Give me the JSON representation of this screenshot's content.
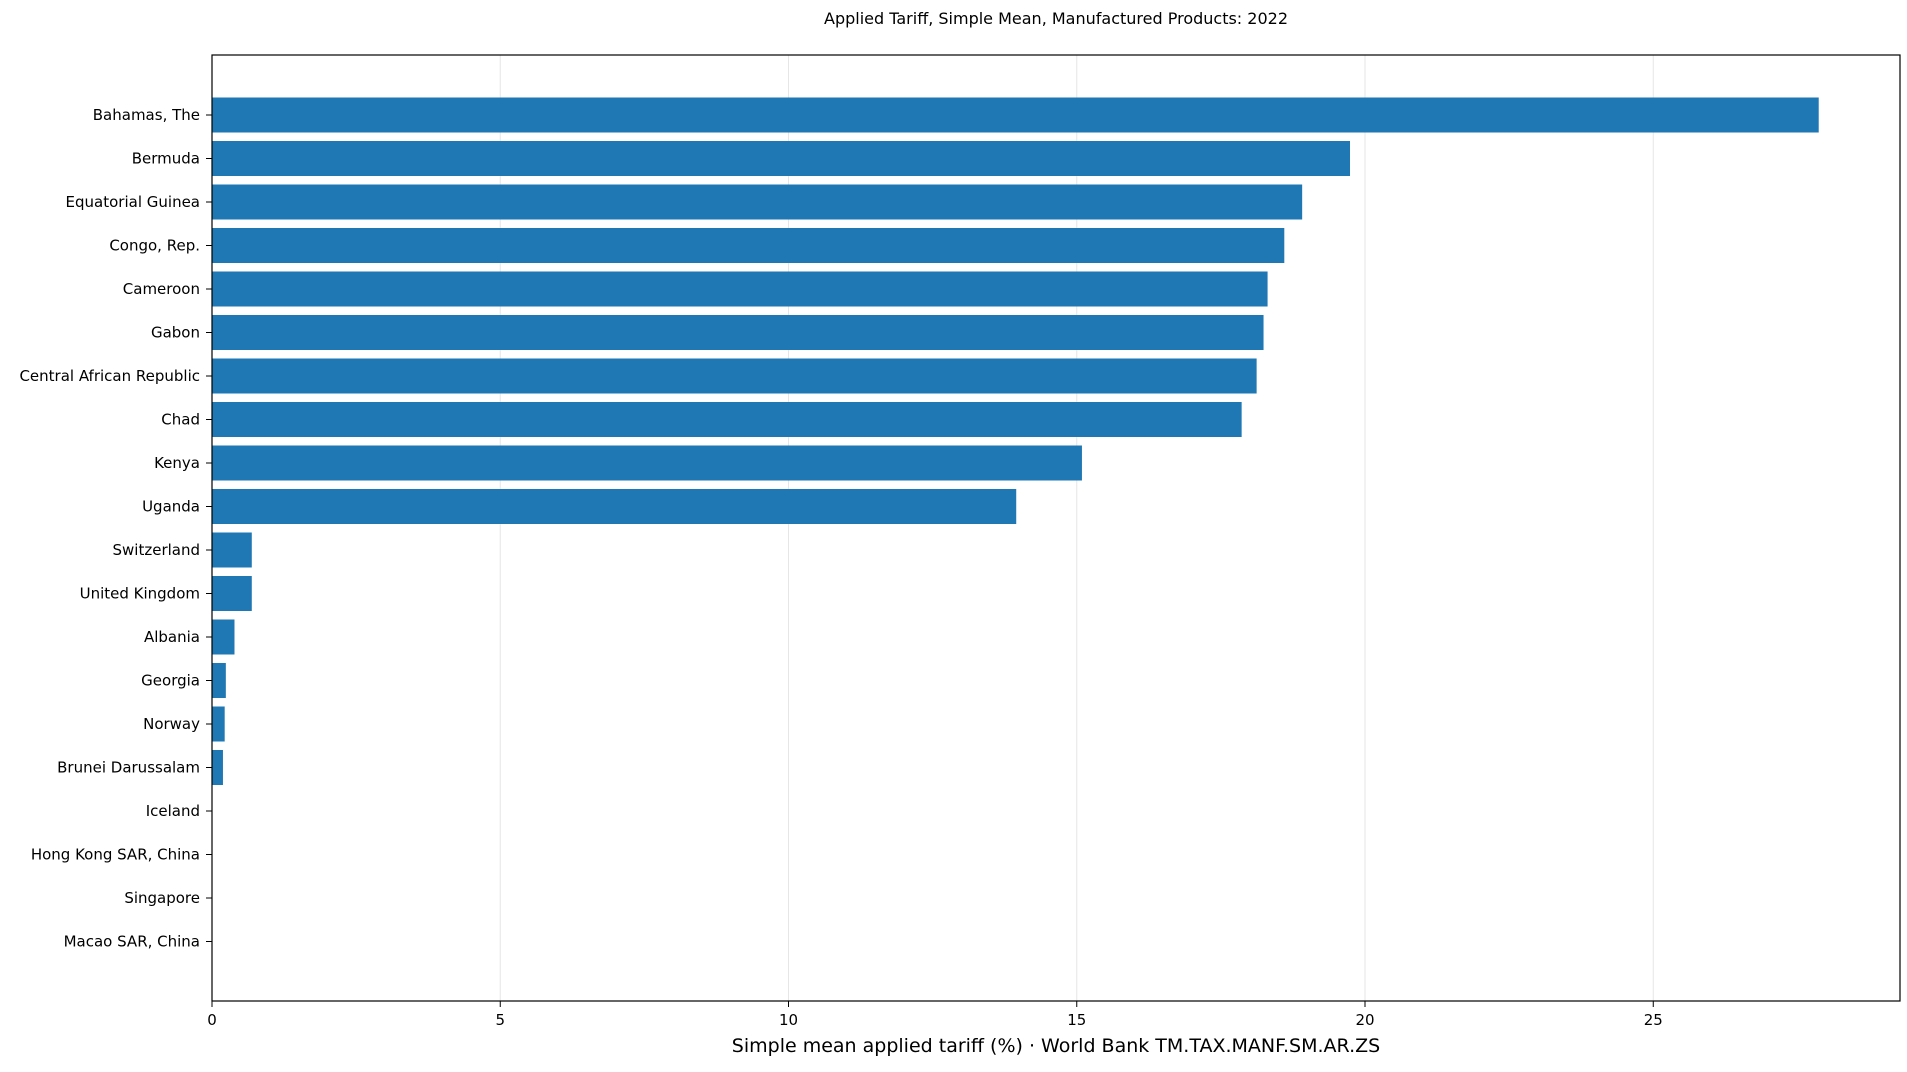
{
  "chart_data": {
    "type": "bar",
    "orientation": "horizontal",
    "title": "Applied Tariff, Simple Mean, Manufactured Products: 2022",
    "xlabel": "Simple mean applied tariff (%) · World Bank TM.TAX.MANF.SM.AR.ZS",
    "ylabel": "",
    "categories": [
      "Bahamas, The",
      "Bermuda",
      "Equatorial Guinea",
      "Congo, Rep.",
      "Cameroon",
      "Gabon",
      "Central African Republic",
      "Chad",
      "Kenya",
      "Uganda",
      "Switzerland",
      "United Kingdom",
      "Albania",
      "Georgia",
      "Norway",
      "Brunei Darussalam",
      "Iceland",
      "Hong Kong SAR, China",
      "Singapore",
      "Macao SAR, China"
    ],
    "values": [
      27.87,
      19.74,
      18.91,
      18.6,
      18.31,
      18.24,
      18.12,
      17.86,
      15.09,
      13.95,
      0.69,
      0.69,
      0.39,
      0.24,
      0.22,
      0.19,
      0.0,
      0.0,
      0.0,
      0.0
    ],
    "xlim": [
      0,
      29.28
    ],
    "xticks": [
      0,
      5,
      10,
      15,
      20,
      25
    ],
    "grid": "vertical",
    "bar_color": "#1f77b4"
  }
}
